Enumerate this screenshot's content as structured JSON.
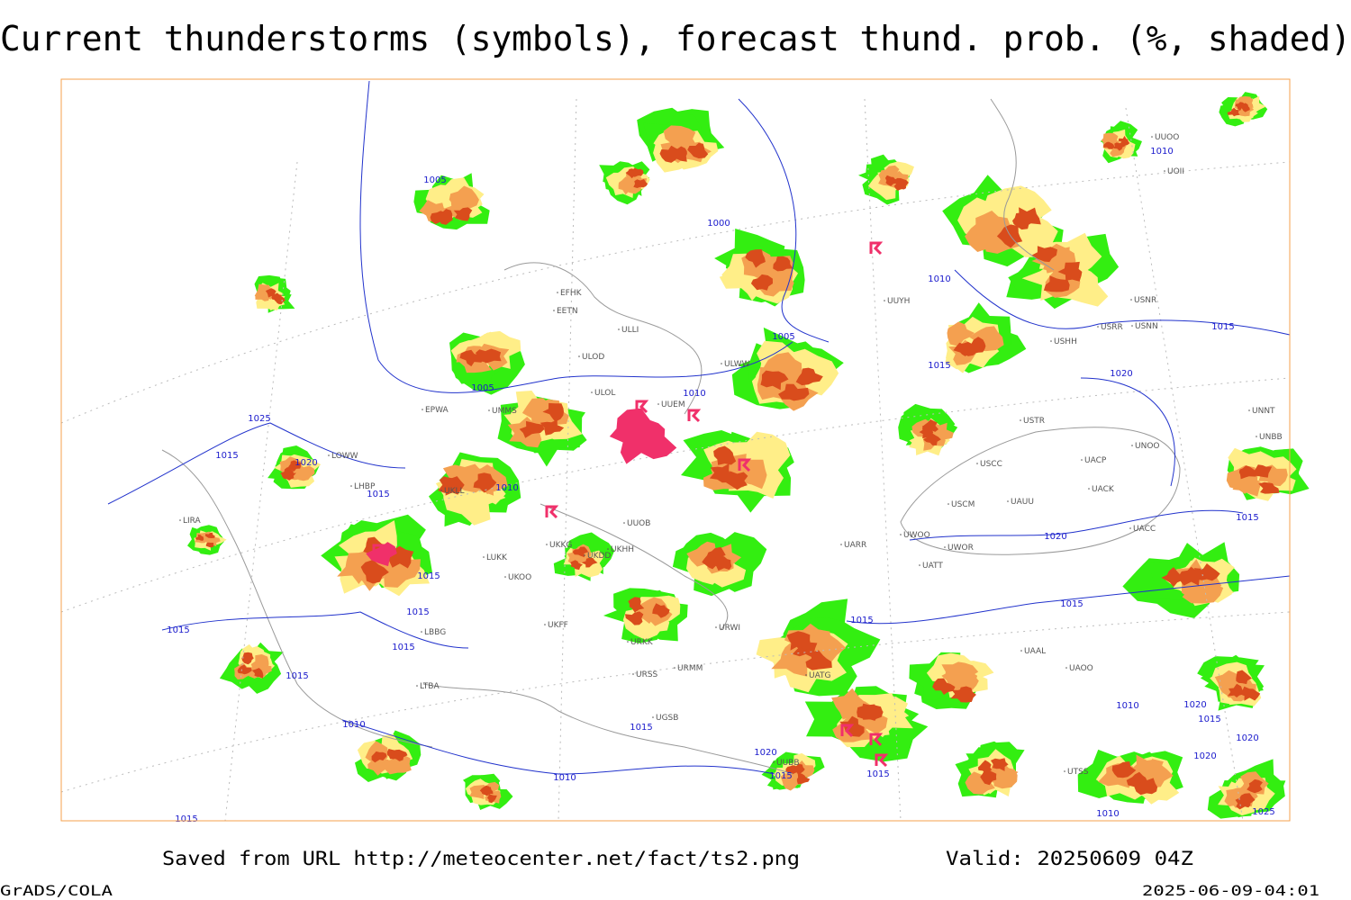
{
  "header": {
    "title": "Current thunderstorms (symbols), forecast thund. prob. (%, shaded)"
  },
  "footer": {
    "source": "Saved from URL http://meteocenter.net/fact/ts2.png",
    "valid": "Valid: 20250609 04Z",
    "software": "GrADS/COLA",
    "timestamp": "2025-06-09-04:01"
  },
  "map": {
    "isobars": [
      "1005",
      "1000",
      "1010",
      "1010",
      "1015",
      "1005",
      "1015",
      "1005",
      "1010",
      "1020",
      "1025",
      "1015",
      "1020",
      "1015",
      "1010",
      "1015",
      "1020",
      "1015",
      "1015",
      "1015",
      "1015",
      "1015",
      "1015",
      "1015",
      "1010",
      "1020",
      "1015",
      "1010",
      "1015",
      "1020",
      "1020",
      "1020",
      "1010",
      "1015",
      "1015",
      "1015",
      "1010",
      "1025"
    ],
    "stations": [
      "EFHK",
      "EETN",
      "ULLI",
      "ULOD",
      "ULOL",
      "UUEM",
      "ULWW",
      "UUYH",
      "USRR",
      "USNN",
      "USNR",
      "UUOO",
      "UOII",
      "USHH",
      "USTR",
      "UNNT",
      "UNBB",
      "UNOO",
      "UACP",
      "USCC",
      "UACK",
      "UAUU",
      "USCM",
      "UACC",
      "UWOO",
      "UWOR",
      "UATT",
      "UARR",
      "UUOB",
      "UKHH",
      "UKDD",
      "UKKG",
      "UKOO",
      "LUKK",
      "UKFF",
      "URKK",
      "URSS",
      "URMM",
      "URWI",
      "UATG",
      "UAOO",
      "UAAL",
      "LIRA",
      "LOWW",
      "LHBP",
      "EPWA",
      "UKLL",
      "UMMS",
      "LBBG",
      "LTBA",
      "UUBB",
      "UTSS",
      "UGSB"
    ]
  }
}
